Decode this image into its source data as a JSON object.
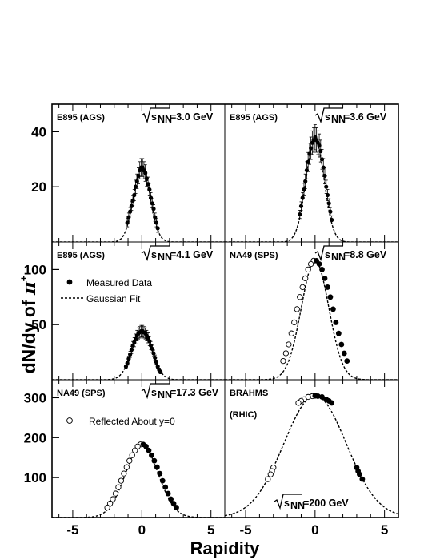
{
  "chart_data": {
    "type": "scatter",
    "xlabel": "Rapidity",
    "ylabel_prefix": "dN/dy of ",
    "ylabel_particle": "π",
    "ylabel_charge": "+",
    "xticks": [
      -5,
      0,
      5
    ],
    "xlim": [
      -6.5,
      6
    ],
    "legend": {
      "measured": "Measured Data",
      "fit": "Gaussian Fit",
      "reflected": "Reflected About y=0"
    },
    "rows": [
      {
        "ylim": [
          0,
          50
        ],
        "yticks": [
          20,
          40
        ]
      },
      {
        "ylim": [
          0,
          125
        ],
        "yticks": [
          50,
          100
        ]
      },
      {
        "ylim": [
          0,
          345
        ],
        "yticks": [
          100,
          200,
          300
        ]
      }
    ],
    "panels": [
      {
        "experiment": "E895 (AGS)",
        "energy_prefix": "√",
        "energy_s": "s",
        "energy_sub": "NN",
        "energy_value": "=3.0 GeV",
        "fit": {
          "amp": 27.5,
          "sigma": 0.6
        },
        "measured": [
          [
            -1.05,
            7
          ],
          [
            -0.95,
            9
          ],
          [
            -0.85,
            11
          ],
          [
            -0.75,
            13
          ],
          [
            -0.65,
            15
          ],
          [
            -0.55,
            17
          ],
          [
            -0.45,
            20
          ],
          [
            -0.35,
            22
          ],
          [
            -0.25,
            24
          ],
          [
            -0.15,
            26
          ],
          [
            -0.05,
            27
          ],
          [
            0.05,
            27
          ],
          [
            0.15,
            26
          ],
          [
            0.25,
            25
          ],
          [
            0.35,
            23
          ],
          [
            0.45,
            21
          ],
          [
            0.55,
            19
          ],
          [
            0.65,
            16
          ],
          [
            0.75,
            14
          ],
          [
            0.85,
            12
          ],
          [
            0.95,
            9
          ],
          [
            1.05,
            7
          ],
          [
            1.15,
            5
          ]
        ],
        "reflected": []
      },
      {
        "experiment": "E895 (AGS)",
        "energy_prefix": "√",
        "energy_s": "s",
        "energy_sub": "NN",
        "energy_value": "=3.6 GeV",
        "fit": {
          "amp": 37.5,
          "sigma": 0.65
        },
        "measured": [
          [
            -1.1,
            10
          ],
          [
            -1.0,
            13
          ],
          [
            -0.9,
            16
          ],
          [
            -0.8,
            19
          ],
          [
            -0.7,
            22
          ],
          [
            -0.6,
            26
          ],
          [
            -0.5,
            29
          ],
          [
            -0.4,
            32
          ],
          [
            -0.3,
            34
          ],
          [
            -0.2,
            36
          ],
          [
            -0.1,
            37
          ],
          [
            0.0,
            38
          ],
          [
            0.1,
            37
          ],
          [
            0.2,
            36
          ],
          [
            0.3,
            35
          ],
          [
            0.4,
            33
          ],
          [
            0.5,
            30
          ],
          [
            0.6,
            27
          ],
          [
            0.7,
            24
          ],
          [
            0.8,
            20
          ],
          [
            0.9,
            17
          ],
          [
            1.0,
            14
          ],
          [
            1.1,
            11
          ],
          [
            1.2,
            8
          ]
        ],
        "reflected": []
      },
      {
        "experiment": "E895 (AGS)",
        "energy_prefix": "√",
        "energy_s": "s",
        "energy_sub": "NN",
        "energy_value": "=4.1 GeV",
        "fit": {
          "amp": 45,
          "sigma": 0.72
        },
        "measured": [
          [
            -1.15,
            12
          ],
          [
            -1.05,
            15
          ],
          [
            -0.95,
            19
          ],
          [
            -0.85,
            23
          ],
          [
            -0.75,
            27
          ],
          [
            -0.65,
            31
          ],
          [
            -0.55,
            34
          ],
          [
            -0.45,
            37
          ],
          [
            -0.35,
            40
          ],
          [
            -0.25,
            42
          ],
          [
            -0.15,
            43
          ],
          [
            -0.05,
            44
          ],
          [
            0.05,
            44
          ],
          [
            0.15,
            43
          ],
          [
            0.25,
            42
          ],
          [
            0.35,
            40
          ],
          [
            0.45,
            38
          ],
          [
            0.55,
            35
          ],
          [
            0.65,
            31
          ],
          [
            0.75,
            28
          ],
          [
            0.85,
            24
          ],
          [
            0.95,
            20
          ],
          [
            1.05,
            16
          ],
          [
            1.15,
            12
          ],
          [
            1.25,
            9
          ],
          [
            1.35,
            7
          ]
        ],
        "reflected": []
      },
      {
        "experiment": "NA49 (SPS)",
        "energy_prefix": "√",
        "energy_s": "s",
        "energy_sub": "NN",
        "energy_value": "=8.8 GeV",
        "fit": {
          "amp": 108,
          "sigma": 0.99
        },
        "measured": [
          [
            0.1,
            108
          ],
          [
            0.3,
            105
          ],
          [
            0.5,
            100
          ],
          [
            0.7,
            92
          ],
          [
            0.9,
            84
          ],
          [
            1.1,
            75
          ],
          [
            1.3,
            64
          ],
          [
            1.5,
            52
          ],
          [
            1.7,
            42
          ],
          [
            1.9,
            32
          ],
          [
            2.1,
            24
          ],
          [
            2.3,
            17
          ]
        ],
        "reflected": [
          [
            -0.1,
            108
          ],
          [
            -0.3,
            105
          ],
          [
            -0.5,
            100
          ],
          [
            -0.7,
            92
          ],
          [
            -0.9,
            84
          ],
          [
            -1.1,
            75
          ],
          [
            -1.3,
            64
          ],
          [
            -1.5,
            52
          ],
          [
            -1.7,
            42
          ],
          [
            -1.9,
            32
          ],
          [
            -2.1,
            24
          ],
          [
            -2.3,
            17
          ]
        ]
      },
      {
        "experiment": "NA49 (SPS)",
        "energy_prefix": "√",
        "energy_s": "s",
        "energy_sub": "NN",
        "energy_value": "=17.3 GeV",
        "fit": {
          "amp": 182,
          "sigma": 1.18
        },
        "measured": [
          [
            0.1,
            183
          ],
          [
            0.3,
            178
          ],
          [
            0.5,
            168
          ],
          [
            0.7,
            156
          ],
          [
            0.9,
            142
          ],
          [
            1.1,
            126
          ],
          [
            1.3,
            110
          ],
          [
            1.5,
            92
          ],
          [
            1.7,
            76
          ],
          [
            1.9,
            60
          ],
          [
            2.1,
            46
          ],
          [
            2.3,
            35
          ],
          [
            2.5,
            25
          ]
        ],
        "reflected": [
          [
            -0.1,
            183
          ],
          [
            -0.3,
            178
          ],
          [
            -0.5,
            168
          ],
          [
            -0.7,
            156
          ],
          [
            -0.9,
            142
          ],
          [
            -1.1,
            126
          ],
          [
            -1.3,
            110
          ],
          [
            -1.5,
            92
          ],
          [
            -1.7,
            76
          ],
          [
            -1.9,
            60
          ],
          [
            -2.1,
            46
          ],
          [
            -2.3,
            35
          ],
          [
            -2.5,
            25
          ]
        ]
      },
      {
        "experiment": "BRAHMS",
        "experiment2": "(RHIC)",
        "energy_prefix": "√",
        "energy_s": "s",
        "energy_sub": "NN",
        "energy_value": "=200 GeV",
        "fit": {
          "amp": 305,
          "sigma": 2.25
        },
        "measured": [
          [
            0.0,
            305
          ],
          [
            0.2,
            304
          ],
          [
            0.5,
            302
          ],
          [
            0.8,
            296
          ],
          [
            1.0,
            292
          ],
          [
            1.2,
            287
          ],
          [
            3.0,
            125
          ],
          [
            3.1,
            116
          ],
          [
            3.2,
            108
          ],
          [
            3.4,
            96
          ]
        ],
        "reflected": [
          [
            0.0,
            305
          ],
          [
            -0.2,
            304
          ],
          [
            -0.5,
            302
          ],
          [
            -0.8,
            296
          ],
          [
            -1.0,
            292
          ],
          [
            -1.2,
            287
          ],
          [
            -3.0,
            125
          ],
          [
            -3.1,
            116
          ],
          [
            -3.2,
            108
          ],
          [
            -3.4,
            96
          ]
        ]
      }
    ]
  }
}
